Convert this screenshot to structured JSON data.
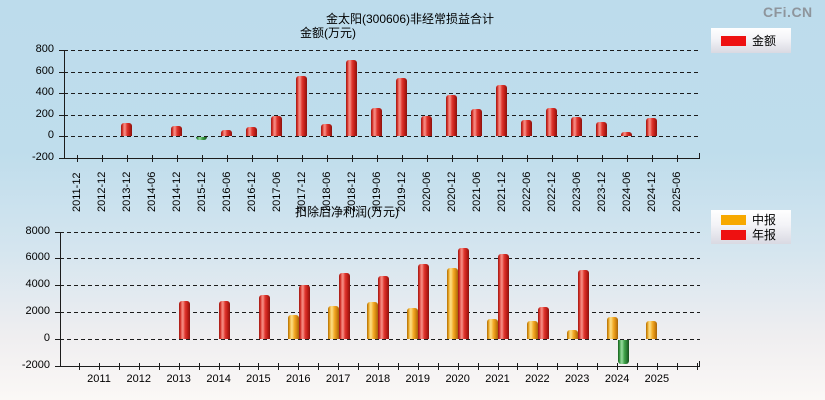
{
  "watermark": "CFi.CN",
  "chart_data": [
    {
      "type": "bar",
      "title": "金太阳(300606)非经常损益合计",
      "ylabel": "金额(万元)",
      "grid": true,
      "legend_position": "top-right",
      "ylim": [
        -200,
        800
      ],
      "y_ticks": [
        800,
        600,
        400,
        200,
        0,
        -200
      ],
      "categories": [
        "2011-12",
        "2012-12",
        "2013-12",
        "2014-06",
        "2014-12",
        "2015-12",
        "2016-06",
        "2016-12",
        "2017-06",
        "2017-12",
        "2018-06",
        "2018-12",
        "2019-06",
        "2019-12",
        "2020-06",
        "2020-12",
        "2021-06",
        "2021-12",
        "2022-06",
        "2022-12",
        "2023-06",
        "2023-12",
        "2024-06",
        "2024-12",
        "2025-06"
      ],
      "series": [
        {
          "name": "金额",
          "key": "amount",
          "color": "#ee1111",
          "negative_color": "#2f9e3f",
          "values": [
            null,
            null,
            120,
            null,
            95,
            -30,
            55,
            80,
            190,
            560,
            115,
            710,
            260,
            540,
            185,
            380,
            250,
            475,
            145,
            265,
            175,
            135,
            40,
            170,
            null
          ]
        }
      ]
    },
    {
      "type": "bar",
      "title": "扣除后净利润(万元)",
      "grid": true,
      "legend_position": "top-right",
      "ylim": [
        -2000,
        8000
      ],
      "y_ticks": [
        8000,
        6000,
        4000,
        2000,
        0,
        -2000
      ],
      "categories": [
        "2011",
        "2012",
        "2013",
        "2014",
        "2015",
        "2016",
        "2017",
        "2018",
        "2019",
        "2020",
        "2021",
        "2022",
        "2023",
        "2024",
        "2025"
      ],
      "series": [
        {
          "name": "中报",
          "key": "interim",
          "color": "#f7a800",
          "negative_color": "#2f9e3f",
          "values": [
            null,
            null,
            null,
            null,
            null,
            1800,
            2450,
            2750,
            2300,
            5300,
            1450,
            1300,
            620,
            1600,
            1350
          ]
        },
        {
          "name": "年报",
          "key": "annual",
          "color": "#ee1111",
          "negative_color": "#2f9e3f",
          "values": [
            null,
            null,
            2800,
            2850,
            3300,
            4000,
            4900,
            4700,
            5600,
            6800,
            6350,
            2400,
            5150,
            -1800,
            null
          ]
        }
      ]
    }
  ]
}
